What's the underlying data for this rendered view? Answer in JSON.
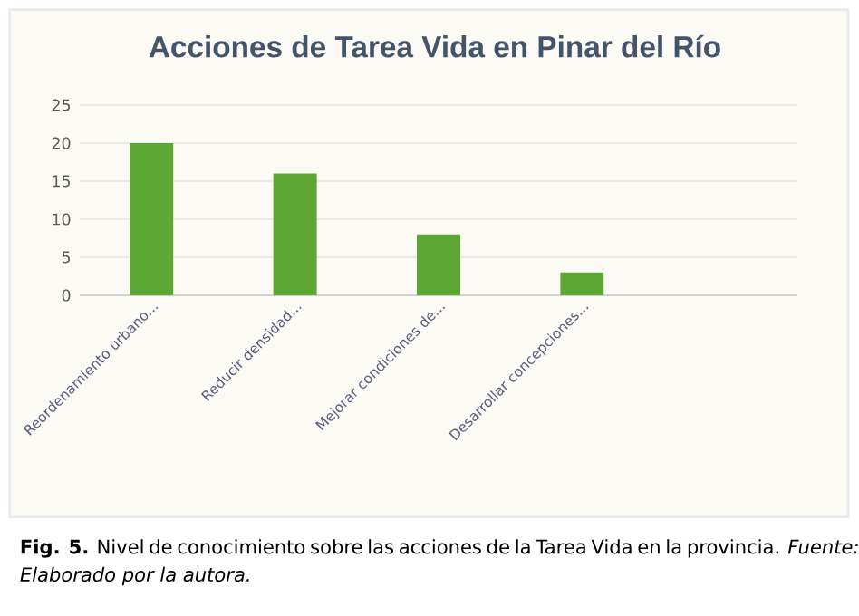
{
  "chart_data": {
    "type": "bar",
    "title": "Acciones de Tarea Vida en Pinar del Río",
    "categories": [
      "Reordenamiento urbano...",
      "Reducir densidad...",
      "Mejorar condiciones de...",
      "Desarrollar concepciones...",
      null
    ],
    "values": [
      20,
      16,
      8,
      3,
      null
    ],
    "color": "#5ea633",
    "ylim": [
      0,
      25
    ],
    "yticks": [
      0,
      5,
      10,
      15,
      20,
      25
    ],
    "grid": "y",
    "annotations": [
      "**Fig. 5.** Nivel de conocimiento sobre las acciones de la Tarea Vida en la provincia. *Fuente: Elaborado por la autora.*"
    ]
  }
}
